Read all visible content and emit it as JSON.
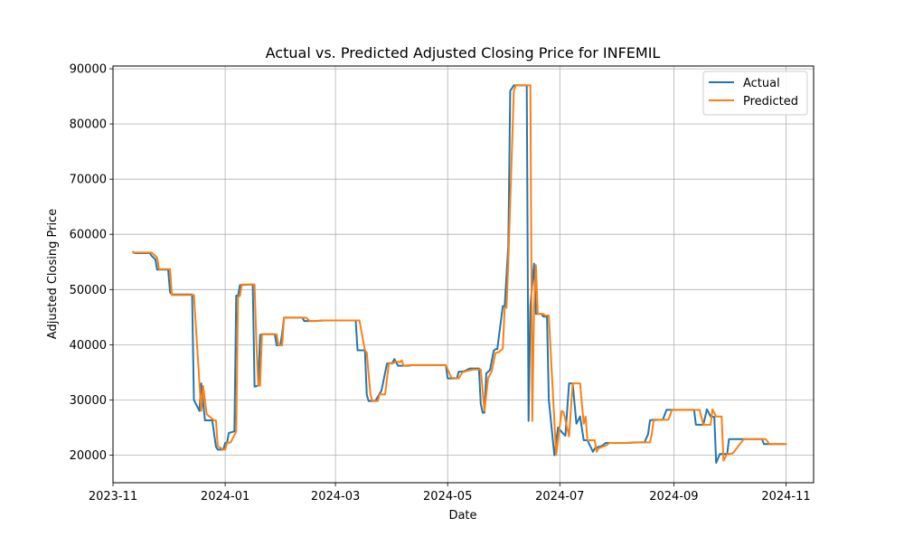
{
  "chart_data": {
    "type": "line",
    "title": "Actual vs. Predicted Adjusted Closing Price for INFEMIL",
    "xlabel": "Date",
    "ylabel": "Adjusted Closing Price",
    "xlim": [
      "2023-11-01",
      "2024-11-16"
    ],
    "ylim": [
      15000,
      90500
    ],
    "x_ticks": [
      {
        "date": "2023-11-01",
        "label": "2023-11"
      },
      {
        "date": "2024-01-01",
        "label": "2024-01"
      },
      {
        "date": "2024-03-01",
        "label": "2024-03"
      },
      {
        "date": "2024-05-01",
        "label": "2024-05"
      },
      {
        "date": "2024-07-01",
        "label": "2024-07"
      },
      {
        "date": "2024-09-01",
        "label": "2024-09"
      },
      {
        "date": "2024-11-01",
        "label": "2024-11"
      }
    ],
    "y_ticks": [
      {
        "value": 20000,
        "label": "20000"
      },
      {
        "value": 30000,
        "label": "30000"
      },
      {
        "value": 40000,
        "label": "40000"
      },
      {
        "value": 50000,
        "label": "50000"
      },
      {
        "value": 60000,
        "label": "60000"
      },
      {
        "value": 70000,
        "label": "70000"
      },
      {
        "value": 80000,
        "label": "80000"
      },
      {
        "value": 90000,
        "label": "90000"
      }
    ],
    "grid": true,
    "legend": {
      "position": "top-right"
    },
    "series": [
      {
        "name": "Actual",
        "color": "#1f77b4",
        "points": [
          [
            "2023-11-12",
            56800
          ],
          [
            "2023-11-13",
            56600
          ],
          [
            "2023-11-21",
            56600
          ],
          [
            "2023-11-22",
            56100
          ],
          [
            "2023-11-24",
            55500
          ],
          [
            "2023-11-25",
            53600
          ],
          [
            "2023-12-01",
            53600
          ],
          [
            "2023-12-02",
            49500
          ],
          [
            "2023-12-03",
            49100
          ],
          [
            "2023-12-14",
            49100
          ],
          [
            "2023-12-15",
            30000
          ],
          [
            "2023-12-18",
            28000
          ],
          [
            "2023-12-19",
            33000
          ],
          [
            "2023-12-21",
            26300
          ],
          [
            "2023-12-25",
            26300
          ],
          [
            "2023-12-27",
            21500
          ],
          [
            "2023-12-28",
            21000
          ],
          [
            "2023-12-31",
            21000
          ],
          [
            "2024-01-01",
            22200
          ],
          [
            "2024-01-02",
            22200
          ],
          [
            "2024-01-03",
            24000
          ],
          [
            "2024-01-06",
            24300
          ],
          [
            "2024-01-07",
            48900
          ],
          [
            "2024-01-08",
            48800
          ],
          [
            "2024-01-09",
            50800
          ],
          [
            "2024-01-15",
            50900
          ],
          [
            "2024-01-16",
            50900
          ],
          [
            "2024-01-17",
            32400
          ],
          [
            "2024-01-19",
            32600
          ],
          [
            "2024-01-20",
            41800
          ],
          [
            "2024-01-21",
            41900
          ],
          [
            "2024-01-28",
            41900
          ],
          [
            "2024-01-29",
            39900
          ],
          [
            "2024-01-31",
            39900
          ],
          [
            "2024-02-01",
            42000
          ],
          [
            "2024-02-02",
            44900
          ],
          [
            "2024-02-12",
            44900
          ],
          [
            "2024-02-13",
            44300
          ],
          [
            "2024-02-19",
            44300
          ],
          [
            "2024-02-23",
            44400
          ],
          [
            "2024-03-10",
            44400
          ],
          [
            "2024-03-12",
            44400
          ],
          [
            "2024-03-13",
            39000
          ],
          [
            "2024-03-17",
            39000
          ],
          [
            "2024-03-18",
            31000
          ],
          [
            "2024-03-19",
            29800
          ],
          [
            "2024-03-22",
            29800
          ],
          [
            "2024-03-23",
            30000
          ],
          [
            "2024-03-26",
            31700
          ],
          [
            "2024-03-29",
            36600
          ],
          [
            "2024-04-01",
            36700
          ],
          [
            "2024-04-02",
            37400
          ],
          [
            "2024-04-04",
            36200
          ],
          [
            "2024-04-09",
            36200
          ],
          [
            "2024-04-12",
            36300
          ],
          [
            "2024-04-28",
            36300
          ],
          [
            "2024-04-30",
            36300
          ],
          [
            "2024-05-01",
            33900
          ],
          [
            "2024-05-03",
            33900
          ],
          [
            "2024-05-06",
            33900
          ],
          [
            "2024-05-07",
            35100
          ],
          [
            "2024-05-10",
            35200
          ],
          [
            "2024-05-13",
            35700
          ],
          [
            "2024-05-18",
            35700
          ],
          [
            "2024-05-19",
            29300
          ],
          [
            "2024-05-20",
            27700
          ],
          [
            "2024-05-21",
            27700
          ],
          [
            "2024-05-22",
            34800
          ],
          [
            "2024-05-24",
            35400
          ],
          [
            "2024-05-26",
            38900
          ],
          [
            "2024-05-27",
            39200
          ],
          [
            "2024-05-28",
            39200
          ],
          [
            "2024-05-31",
            47000
          ],
          [
            "2024-06-01",
            47000
          ],
          [
            "2024-06-03",
            58000
          ],
          [
            "2024-06-04",
            86000
          ],
          [
            "2024-06-06",
            87000
          ],
          [
            "2024-06-12",
            87000
          ],
          [
            "2024-06-13",
            87000
          ],
          [
            "2024-06-14",
            26200
          ],
          [
            "2024-06-15",
            47000
          ],
          [
            "2024-06-17",
            54700
          ],
          [
            "2024-06-18",
            45600
          ],
          [
            "2024-06-21",
            45600
          ],
          [
            "2024-06-22",
            45100
          ],
          [
            "2024-06-24",
            45100
          ],
          [
            "2024-06-25",
            30000
          ],
          [
            "2024-06-28",
            20000
          ],
          [
            "2024-06-30",
            25000
          ],
          [
            "2024-07-02",
            24200
          ],
          [
            "2024-07-04",
            23500
          ],
          [
            "2024-07-06",
            33000
          ],
          [
            "2024-07-08",
            33000
          ],
          [
            "2024-07-10",
            25700
          ],
          [
            "2024-07-12",
            27000
          ],
          [
            "2024-07-14",
            22700
          ],
          [
            "2024-07-16",
            22700
          ],
          [
            "2024-07-18",
            21300
          ],
          [
            "2024-07-19",
            20600
          ],
          [
            "2024-07-20",
            21200
          ],
          [
            "2024-07-22",
            21500
          ],
          [
            "2024-07-24",
            21700
          ],
          [
            "2024-07-26",
            22200
          ],
          [
            "2024-07-31",
            22200
          ],
          [
            "2024-08-06",
            22200
          ],
          [
            "2024-08-11",
            22300
          ],
          [
            "2024-08-16",
            22300
          ],
          [
            "2024-08-18",
            23800
          ],
          [
            "2024-08-19",
            26300
          ],
          [
            "2024-08-21",
            26400
          ],
          [
            "2024-08-26",
            26400
          ],
          [
            "2024-08-28",
            28200
          ],
          [
            "2024-09-12",
            28200
          ],
          [
            "2024-09-13",
            25500
          ],
          [
            "2024-09-17",
            25500
          ],
          [
            "2024-09-19",
            28300
          ],
          [
            "2024-09-21",
            27000
          ],
          [
            "2024-09-23",
            26900
          ],
          [
            "2024-09-24",
            18600
          ],
          [
            "2024-09-26",
            20200
          ],
          [
            "2024-09-30",
            20200
          ],
          [
            "2024-10-01",
            22900
          ],
          [
            "2024-10-06",
            22900
          ],
          [
            "2024-10-17",
            22900
          ],
          [
            "2024-10-19",
            22900
          ],
          [
            "2024-10-20",
            22000
          ],
          [
            "2024-10-31",
            22000
          ]
        ]
      },
      {
        "name": "Predicted",
        "color": "#ff7f0e",
        "points": [
          [
            "2023-11-12",
            56700
          ],
          [
            "2023-11-13",
            56700
          ],
          [
            "2023-11-22",
            56700
          ],
          [
            "2023-11-25",
            55800
          ],
          [
            "2023-11-26",
            53700
          ],
          [
            "2023-12-01",
            53700
          ],
          [
            "2023-12-02",
            53700
          ],
          [
            "2023-12-03",
            49000
          ],
          [
            "2023-12-15",
            49000
          ],
          [
            "2023-12-19",
            28000
          ],
          [
            "2023-12-20",
            32500
          ],
          [
            "2023-12-22",
            27400
          ],
          [
            "2023-12-26",
            26300
          ],
          [
            "2023-12-27",
            26300
          ],
          [
            "2023-12-28",
            21600
          ],
          [
            "2023-12-31",
            21000
          ],
          [
            "2024-01-01",
            21000
          ],
          [
            "2024-01-02",
            22200
          ],
          [
            "2024-01-04",
            22300
          ],
          [
            "2024-01-07",
            24300
          ],
          [
            "2024-01-08",
            48700
          ],
          [
            "2024-01-09",
            48800
          ],
          [
            "2024-01-10",
            50900
          ],
          [
            "2024-01-17",
            50900
          ],
          [
            "2024-01-18",
            40000
          ],
          [
            "2024-01-19",
            32600
          ],
          [
            "2024-01-20",
            32600
          ],
          [
            "2024-01-21",
            41900
          ],
          [
            "2024-01-29",
            41900
          ],
          [
            "2024-01-30",
            39900
          ],
          [
            "2024-02-01",
            39900
          ],
          [
            "2024-02-02",
            44900
          ],
          [
            "2024-02-13",
            44900
          ],
          [
            "2024-02-14",
            44900
          ],
          [
            "2024-02-16",
            44300
          ],
          [
            "2024-02-20",
            44300
          ],
          [
            "2024-02-24",
            44400
          ],
          [
            "2024-03-12",
            44400
          ],
          [
            "2024-03-14",
            44400
          ],
          [
            "2024-03-17",
            39000
          ],
          [
            "2024-03-18",
            38600
          ],
          [
            "2024-03-20",
            31000
          ],
          [
            "2024-03-21",
            29800
          ],
          [
            "2024-03-24",
            29800
          ],
          [
            "2024-03-25",
            31000
          ],
          [
            "2024-03-28",
            31000
          ],
          [
            "2024-03-30",
            36600
          ],
          [
            "2024-04-01",
            36600
          ],
          [
            "2024-04-03",
            37000
          ],
          [
            "2024-04-05",
            36800
          ],
          [
            "2024-04-06",
            37200
          ],
          [
            "2024-04-07",
            36200
          ],
          [
            "2024-04-10",
            36300
          ],
          [
            "2024-04-30",
            36300
          ],
          [
            "2024-05-03",
            34000
          ],
          [
            "2024-05-07",
            33900
          ],
          [
            "2024-05-09",
            35000
          ],
          [
            "2024-05-12",
            35300
          ],
          [
            "2024-05-15",
            35500
          ],
          [
            "2024-05-19",
            35500
          ],
          [
            "2024-05-21",
            28000
          ],
          [
            "2024-05-23",
            34000
          ],
          [
            "2024-05-25",
            35200
          ],
          [
            "2024-05-27",
            38500
          ],
          [
            "2024-05-29",
            38700
          ],
          [
            "2024-05-31",
            39300
          ],
          [
            "2024-06-01",
            46700
          ],
          [
            "2024-06-02",
            46700
          ],
          [
            "2024-06-03",
            55000
          ],
          [
            "2024-06-06",
            86000
          ],
          [
            "2024-06-07",
            87000
          ],
          [
            "2024-06-14",
            87000
          ],
          [
            "2024-06-15",
            87000
          ],
          [
            "2024-06-16",
            26200
          ],
          [
            "2024-06-17",
            47000
          ],
          [
            "2024-06-18",
            54400
          ],
          [
            "2024-06-19",
            45600
          ],
          [
            "2024-06-22",
            45600
          ],
          [
            "2024-06-23",
            45300
          ],
          [
            "2024-06-25",
            45300
          ],
          [
            "2024-06-29",
            20000
          ],
          [
            "2024-07-02",
            28000
          ],
          [
            "2024-07-03",
            27800
          ],
          [
            "2024-07-06",
            23400
          ],
          [
            "2024-07-08",
            33000
          ],
          [
            "2024-07-12",
            33000
          ],
          [
            "2024-07-14",
            25700
          ],
          [
            "2024-07-15",
            27000
          ],
          [
            "2024-07-16",
            22700
          ],
          [
            "2024-07-20",
            22700
          ],
          [
            "2024-07-21",
            20600
          ],
          [
            "2024-07-22",
            21200
          ],
          [
            "2024-07-24",
            21500
          ],
          [
            "2024-07-26",
            21700
          ],
          [
            "2024-07-28",
            22200
          ],
          [
            "2024-08-06",
            22200
          ],
          [
            "2024-08-14",
            22300
          ],
          [
            "2024-08-19",
            22300
          ],
          [
            "2024-08-20",
            23800
          ],
          [
            "2024-08-21",
            26300
          ],
          [
            "2024-08-25",
            26400
          ],
          [
            "2024-08-29",
            26400
          ],
          [
            "2024-08-31",
            28200
          ],
          [
            "2024-09-15",
            28200
          ],
          [
            "2024-09-17",
            25500
          ],
          [
            "2024-09-21",
            25500
          ],
          [
            "2024-09-22",
            28300
          ],
          [
            "2024-09-24",
            27000
          ],
          [
            "2024-09-27",
            27000
          ],
          [
            "2024-09-28",
            19000
          ],
          [
            "2024-09-30",
            20200
          ],
          [
            "2024-10-03",
            20300
          ],
          [
            "2024-10-09",
            22900
          ],
          [
            "2024-10-21",
            22900
          ],
          [
            "2024-10-23",
            22000
          ],
          [
            "2024-11-01",
            22000
          ]
        ]
      }
    ]
  }
}
